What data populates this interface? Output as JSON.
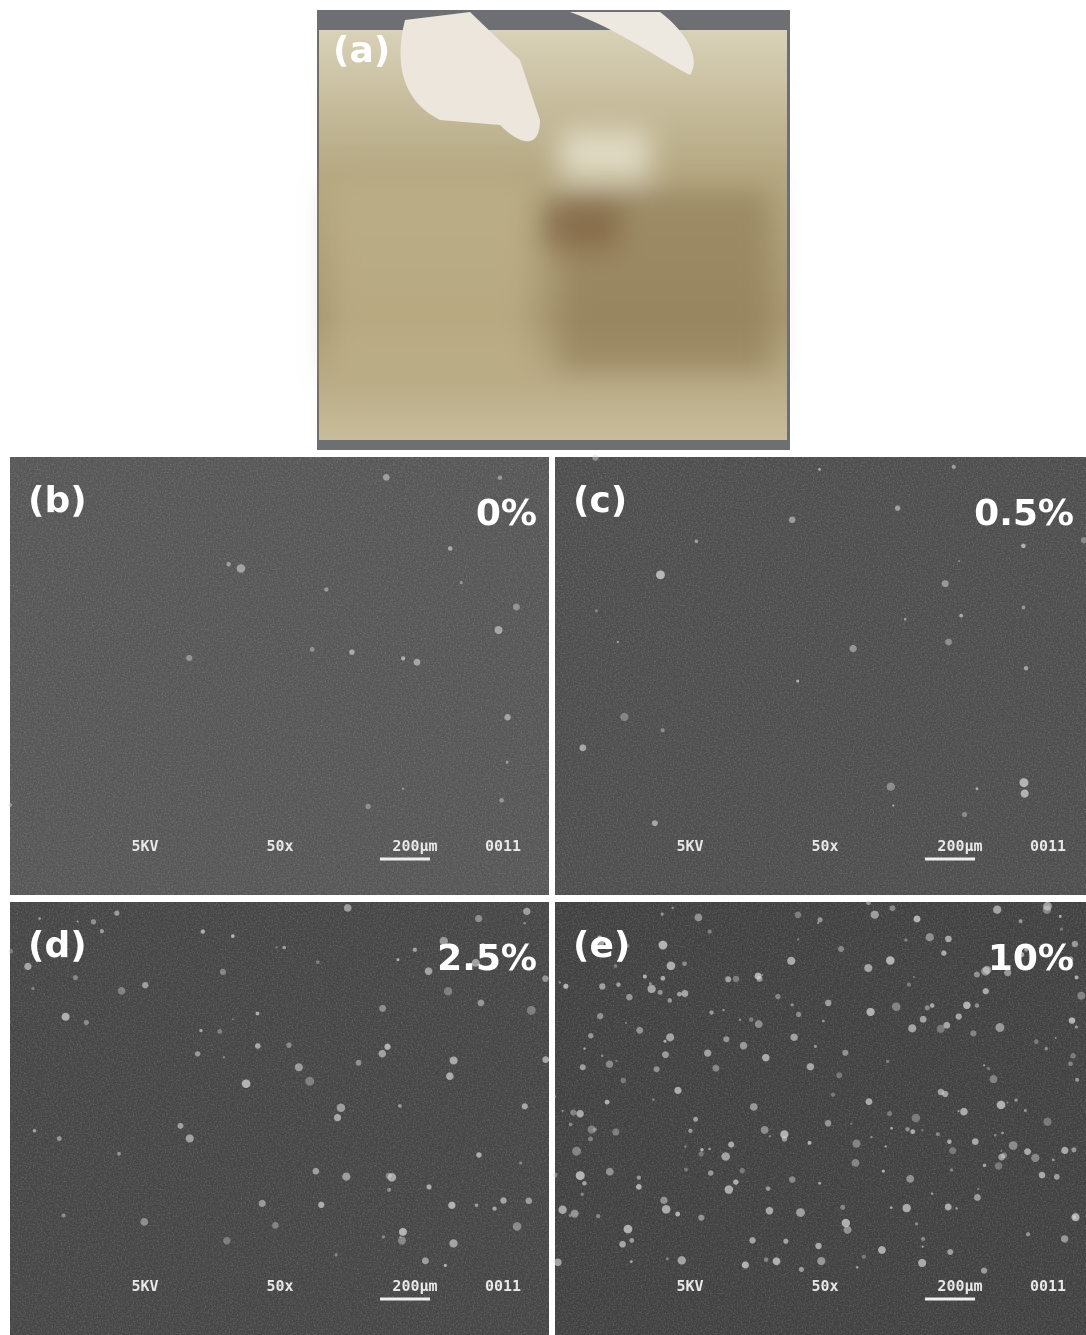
{
  "panels": [
    {
      "label": "(a)"
    },
    {
      "label": "(b)",
      "concentration": "0%",
      "sem_info": {
        "voltage": "5KV",
        "magnification": "50x",
        "scale": "200µm",
        "image_number": "0011"
      }
    },
    {
      "label": "(c)",
      "concentration": "0.5%",
      "sem_info": {
        "voltage": "5KV",
        "magnification": "50x",
        "scale": "200µm",
        "image_number": "0011"
      }
    },
    {
      "label": "(d)",
      "concentration": "2.5%",
      "sem_info": {
        "voltage": "5KV",
        "magnification": "50x",
        "scale": "200µm",
        "image_number": "0011"
      }
    },
    {
      "label": "(e)",
      "concentration": "10%",
      "sem_info": {
        "voltage": "5KV",
        "magnification": "50x",
        "scale": "200µm",
        "image_number": "0011"
      }
    }
  ]
}
